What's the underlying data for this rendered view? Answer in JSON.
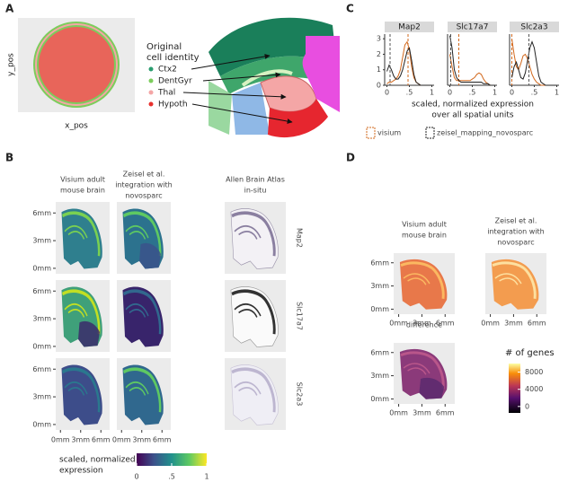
{
  "panel_a": {
    "label": "A",
    "y_label": "y_pos",
    "x_label": "x_pos",
    "legend_title": [
      "Original",
      "cell identity"
    ],
    "legend": [
      {
        "name": "Ctx2",
        "color": "#2a9d6f"
      },
      {
        "name": "DentGyr",
        "color": "#7ccd5c"
      },
      {
        "name": "Thal",
        "color": "#f4a6a6"
      },
      {
        "name": "Hypoth",
        "color": "#e8312e"
      }
    ]
  },
  "panel_c": {
    "label": "C",
    "type": "line",
    "x_label": [
      "scaled, normalized expression",
      "over all spatial units"
    ],
    "xlim": [
      -0.05,
      1.05
    ],
    "ylim": [
      0,
      3.3
    ],
    "xticks": [
      0,
      {
        "value": 0.5,
        "label": ".5"
      },
      1
    ],
    "yticks": [
      0,
      1,
      2,
      3
    ],
    "x": [
      0,
      0.05,
      0.1,
      0.15,
      0.2,
      0.25,
      0.3,
      0.35,
      0.4,
      0.45,
      0.5,
      0.55,
      0.6,
      0.65,
      0.7,
      0.75,
      0.8,
      0.85,
      0.9,
      0.95,
      1
    ],
    "legend": [
      {
        "name": "visium",
        "color": "#d2691e"
      },
      {
        "name": "zeisel_mapping_novosparc",
        "color": "#222222"
      }
    ],
    "facets": [
      {
        "name": "Map2",
        "series": [
          {
            "values": [
              0.1,
              0.2,
              0.2,
              0.3,
              0.4,
              0.6,
              1.0,
              1.8,
              2.6,
              2.8,
              2.3,
              1.2,
              0.5,
              0.2,
              0.1,
              0,
              0,
              0,
              0,
              0,
              0
            ],
            "mean": 0.47
          },
          {
            "values": [
              0.9,
              1.3,
              1.0,
              0.6,
              0.4,
              0.4,
              0.6,
              1.0,
              1.6,
              2.2,
              2.4,
              1.6,
              0.7,
              0.2,
              0.1,
              0,
              0,
              0,
              0,
              0,
              0
            ],
            "mean": 0.07
          }
        ]
      },
      {
        "name": "Slc17a7",
        "series": [
          {
            "values": [
              2.0,
              1.2,
              0.5,
              0.3,
              0.3,
              0.3,
              0.3,
              0.3,
              0.3,
              0.3,
              0.4,
              0.5,
              0.7,
              0.8,
              0.7,
              0.4,
              0.2,
              0.1,
              0,
              0,
              0
            ],
            "mean": 0.2
          },
          {
            "values": [
              3.2,
              2.4,
              1.0,
              0.5,
              0.3,
              0.2,
              0.2,
              0.2,
              0.2,
              0.2,
              0.2,
              0.2,
              0.2,
              0.2,
              0.2,
              0.1,
              0.1,
              0.1,
              0,
              0,
              0
            ],
            "mean": 0.02
          }
        ]
      },
      {
        "name": "Slc2a3",
        "series": [
          {
            "values": [
              3.0,
              2.0,
              1.2,
              1.0,
              1.4,
              1.9,
              2.0,
              1.7,
              1.2,
              0.7,
              0.4,
              0.2,
              0.1,
              0,
              0,
              0,
              0,
              0,
              0,
              0,
              0
            ],
            "mean": 0.0
          },
          {
            "values": [
              0.5,
              1.2,
              1.5,
              1.0,
              0.5,
              0.4,
              0.8,
              1.6,
              2.4,
              2.8,
              2.4,
              1.5,
              0.6,
              0.2,
              0.1,
              0,
              0,
              0,
              0,
              0,
              0
            ],
            "mean": 0.38
          }
        ]
      }
    ]
  },
  "panel_b": {
    "label": "B",
    "columns": [
      [
        "Visium adult",
        "mouse brain"
      ],
      [
        "Zeisel et al.",
        "integration with",
        "novosparc"
      ],
      [
        "Allen Brain Atlas",
        "in-situ"
      ]
    ],
    "rows": [
      "Map2",
      "Slc17a7",
      "Slc2a3"
    ],
    "lim": [
      -0.3,
      6.9
    ],
    "ticks": [
      {
        "value": 0,
        "label": "0mm"
      },
      {
        "value": 3,
        "label": "3mm"
      },
      {
        "value": 6,
        "label": "6mm"
      }
    ],
    "colorbar_title": [
      "scaled, normalized",
      "expression"
    ],
    "colorbar_lim": [
      0,
      1
    ],
    "colorbar_ticks": [
      0,
      {
        "value": 0.5,
        "label": ".5"
      },
      1
    ]
  },
  "panel_d": {
    "label": "D",
    "columns": [
      [
        "Visium adult",
        "mouse brain"
      ],
      [
        "Zeisel et al.",
        "integration with",
        "novosparc"
      ]
    ],
    "difference_title": "difference",
    "lim": [
      -0.3,
      6.9
    ],
    "ticks": [
      {
        "value": 0,
        "label": "0mm"
      },
      {
        "value": 3,
        "label": "3mm"
      },
      {
        "value": 6,
        "label": "6mm"
      }
    ],
    "colorbar_title": "# of genes",
    "colorbar_lim": [
      -1500,
      10000
    ],
    "colorbar_ticks": [
      0,
      4000,
      8000
    ]
  }
}
